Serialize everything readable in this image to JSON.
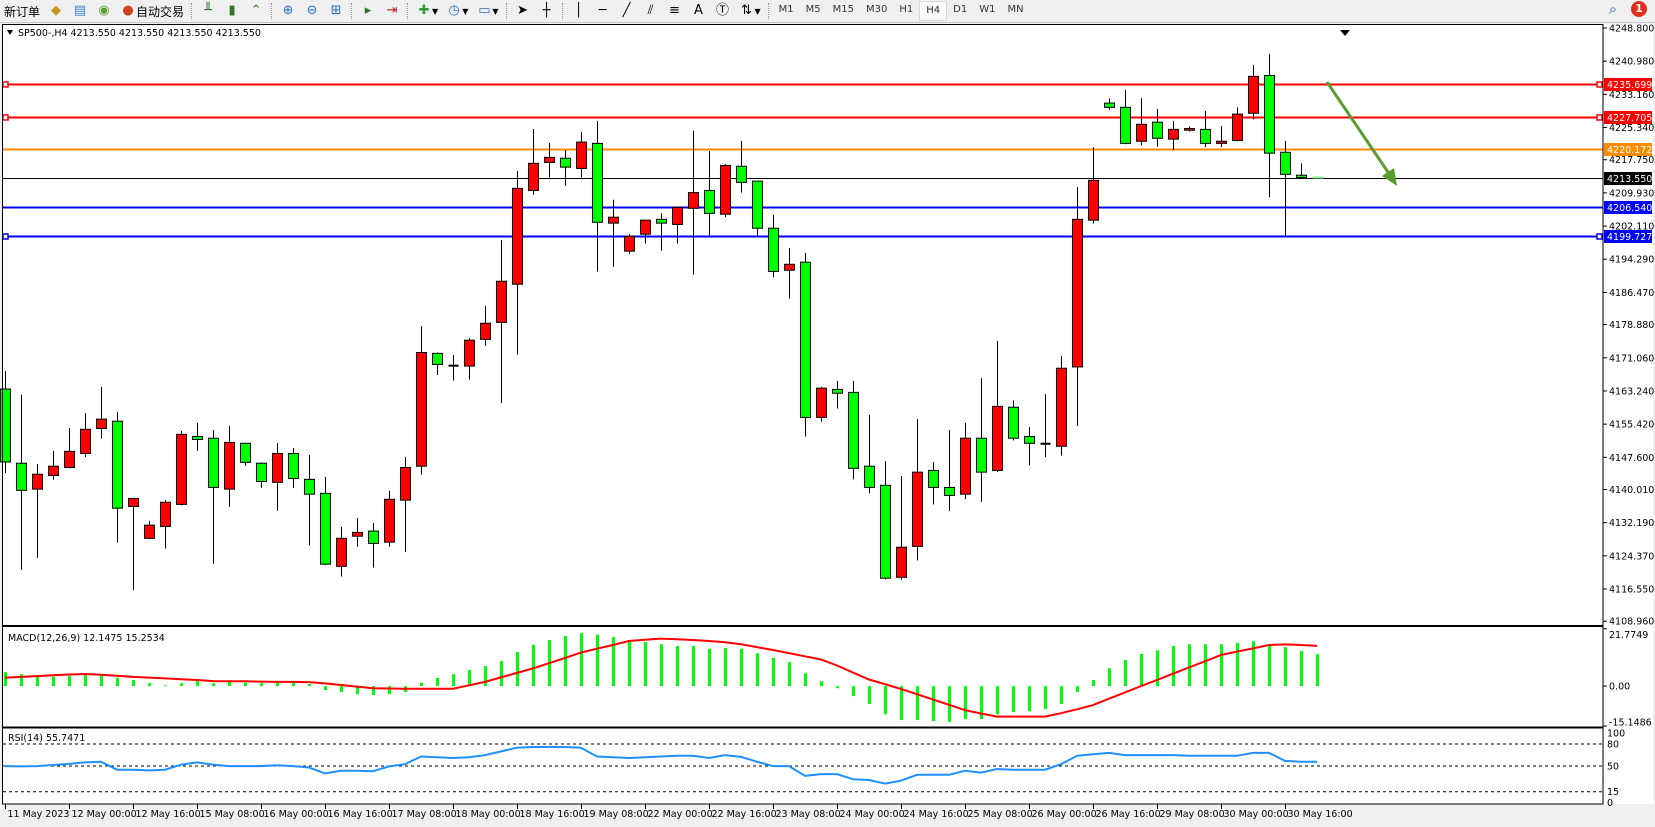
{
  "toolbar": {
    "new_order_label": "新订单",
    "auto_trading_label": "自动交易",
    "tools": [
      "bar-chart-icon",
      "candlestick-icon",
      "line-chart-icon",
      "zoom-in-icon",
      "zoom-out-icon",
      "tile-windows-icon",
      "auto-scroll-icon",
      "chart-shift-icon",
      "indicators-icon",
      "periods-icon",
      "templates-icon",
      "cursor-icon",
      "crosshair-icon",
      "vertical-line-icon",
      "horizontal-line-icon",
      "trendline-icon",
      "equidistant-channel-icon",
      "fibonacci-icon",
      "text-icon",
      "text-label-icon",
      "arrows-icon"
    ],
    "text_tool_label": "A",
    "timeframes": [
      "M1",
      "M5",
      "M15",
      "M30",
      "H1",
      "H4",
      "D1",
      "W1",
      "MN"
    ],
    "active_timeframe": "H4",
    "notification_count": "1"
  },
  "chart": {
    "header": "SP500-,H4  4213.550 4213.550 4213.550 4213.550",
    "bull_color": "#ff0000",
    "bear_color": "#00ff00",
    "current_bar_color": "#90ee90",
    "price_axis_labels": [
      "4248.800",
      "4240.980",
      "4233.160",
      "4225.340",
      "4217.750",
      "4209.930",
      "4202.110",
      "4194.290",
      "4186.470",
      "4178.880",
      "4171.060",
      "4163.240",
      "4155.420",
      "4147.600",
      "4140.010",
      "4132.190",
      "4124.370",
      "4116.550",
      "4108.960"
    ],
    "levels": [
      {
        "price": 4235.699,
        "label": "4235.699",
        "color": "#ff0000",
        "text_color": "#ffffff",
        "width": 2,
        "markers": true
      },
      {
        "price": 4227.705,
        "label": "4227.705",
        "color": "#ff0000",
        "text_color": "#ffffff",
        "width": 2,
        "markers": true
      },
      {
        "price": 4220.172,
        "label": "4220.172",
        "color": "#ff8c00",
        "text_color": "#ffffff",
        "width": 2,
        "markers": false
      },
      {
        "price": 4213.55,
        "label": "4213.550",
        "color": "#000000",
        "text_color": "#ffffff",
        "width": 1,
        "markers": false
      },
      {
        "price": 4206.54,
        "label": "4206.540",
        "color": "#0000ff",
        "text_color": "#ffffff",
        "width": 2,
        "markers": false
      },
      {
        "price": 4199.727,
        "label": "4199.727",
        "color": "#0000ff",
        "text_color": "#ffffff",
        "width": 2,
        "markers": true
      }
    ],
    "arrow_color": "#5a9e32",
    "date_labels": [
      "11 May 2023",
      "12 May 00:00",
      "12 May 16:00",
      "15 May 08:00",
      "16 May 00:00",
      "16 May 16:00",
      "17 May 08:00",
      "18 May 00:00",
      "18 May 16:00",
      "19 May 08:00",
      "22 May 00:00",
      "22 May 16:00",
      "23 May 08:00",
      "24 May 00:00",
      "24 May 16:00",
      "25 May 08:00",
      "26 May 00:00",
      "26 May 16:00",
      "29 May 08:00",
      "30 May 00:00",
      "30 May 16:00"
    ]
  },
  "chart_data": {
    "type": "candlestick",
    "symbol": "SP500-",
    "timeframe": "H4",
    "ylim": [
      4108.96,
      4248.8
    ],
    "ohlc": [
      [
        4163.7,
        4167.9,
        4143.9,
        4146.5
      ],
      [
        4146.2,
        4162.4,
        4121.1,
        4139.8
      ],
      [
        4140.1,
        4146.0,
        4123.9,
        4143.6
      ],
      [
        4143.3,
        4149.1,
        4142.3,
        4145.5
      ],
      [
        4145.2,
        4154.5,
        4145.0,
        4149.0
      ],
      [
        4148.5,
        4158.0,
        4147.7,
        4154.2
      ],
      [
        4154.4,
        4164.2,
        4152.0,
        4156.6
      ],
      [
        4156.1,
        4158.3,
        4127.5,
        4135.6
      ],
      [
        4136.0,
        4138.0,
        4116.3,
        4137.9
      ],
      [
        4128.5,
        4132.6,
        4128.3,
        4131.6
      ],
      [
        4131.3,
        4137.5,
        4126.1,
        4137.0
      ],
      [
        4136.5,
        4153.8,
        4136.3,
        4153.0
      ],
      [
        4152.5,
        4155.7,
        4149.1,
        4151.8
      ],
      [
        4152.1,
        4154.0,
        4122.5,
        4140.5
      ],
      [
        4140.1,
        4155.0,
        4135.9,
        4151.1
      ],
      [
        4150.9,
        4151.0,
        4145.6,
        4146.4
      ],
      [
        4146.2,
        4146.4,
        4140.4,
        4141.9
      ],
      [
        4141.7,
        4150.9,
        4135.0,
        4148.5
      ],
      [
        4148.5,
        4149.8,
        4140.4,
        4142.6
      ],
      [
        4142.4,
        4148.1,
        4126.8,
        4138.9
      ],
      [
        4139.1,
        4143.0,
        4122.2,
        4122.4
      ],
      [
        4121.9,
        4131.2,
        4119.5,
        4128.5
      ],
      [
        4129.0,
        4133.3,
        4126.5,
        4129.9
      ],
      [
        4130.2,
        4132.1,
        4121.6,
        4127.3
      ],
      [
        4127.6,
        4139.7,
        4126.5,
        4137.7
      ],
      [
        4137.5,
        4147.7,
        4125.3,
        4145.2
      ],
      [
        4145.5,
        4178.5,
        4143.5,
        4172.3
      ],
      [
        4172.1,
        4172.3,
        4167.0,
        4169.5
      ],
      [
        4169.2,
        4171.7,
        4165.7,
        4169.1
      ],
      [
        4169.1,
        4175.7,
        4165.9,
        4175.2
      ],
      [
        4175.4,
        4183.3,
        4173.9,
        4179.2
      ],
      [
        4179.4,
        4198.8,
        4160.4,
        4189.1
      ],
      [
        4188.4,
        4215.1,
        4171.8,
        4211.0
      ],
      [
        4210.5,
        4225.0,
        4209.5,
        4216.9
      ],
      [
        4217.1,
        4221.7,
        4213.6,
        4218.3
      ],
      [
        4218.1,
        4220.0,
        4211.6,
        4216.0
      ],
      [
        4215.7,
        4224.3,
        4213.6,
        4221.9
      ],
      [
        4221.6,
        4226.9,
        4191.4,
        4203.0
      ],
      [
        4202.8,
        4208.3,
        4192.5,
        4204.2
      ],
      [
        4196.2,
        4200.2,
        4195.6,
        4199.7
      ],
      [
        4200.2,
        4203.6,
        4198.0,
        4203.5
      ],
      [
        4203.7,
        4205.1,
        4196.3,
        4202.8
      ],
      [
        4202.5,
        4206.7,
        4198.0,
        4206.5
      ],
      [
        4206.3,
        4224.6,
        4190.7,
        4210.0
      ],
      [
        4210.5,
        4219.8,
        4199.9,
        4205.1
      ],
      [
        4204.9,
        4216.7,
        4204.2,
        4216.4
      ],
      [
        4216.2,
        4222.2,
        4210.0,
        4212.4
      ],
      [
        4212.7,
        4212.8,
        4199.5,
        4201.6
      ],
      [
        4201.6,
        4204.7,
        4190.0,
        4191.4
      ],
      [
        4191.7,
        4196.9,
        4185.0,
        4193.1
      ],
      [
        4193.6,
        4195.8,
        4152.5,
        4157.0
      ],
      [
        4157.0,
        4164.2,
        4156.0,
        4163.9
      ],
      [
        4163.6,
        4165.6,
        4159.1,
        4162.7
      ],
      [
        4162.9,
        4165.6,
        4142.4,
        4145.0
      ],
      [
        4145.5,
        4157.6,
        4139.1,
        4140.5
      ],
      [
        4141.0,
        4146.7,
        4118.8,
        4119.1
      ],
      [
        4119.3,
        4143.2,
        4118.8,
        4126.4
      ],
      [
        4126.6,
        4156.6,
        4123.3,
        4144.1
      ],
      [
        4144.5,
        4146.5,
        4136.5,
        4140.5
      ],
      [
        4140.5,
        4154.0,
        4134.9,
        4138.6
      ],
      [
        4138.9,
        4155.7,
        4137.7,
        4152.1
      ],
      [
        4152.1,
        4166.3,
        4137.1,
        4144.1
      ],
      [
        4144.5,
        4175.0,
        4144.1,
        4159.6
      ],
      [
        4159.4,
        4161.0,
        4151.6,
        4152.1
      ],
      [
        4152.5,
        4154.7,
        4145.7,
        4150.9
      ],
      [
        4150.8,
        4162.5,
        4147.6,
        4150.6
      ],
      [
        4150.2,
        4171.5,
        4148.0,
        4168.6
      ],
      [
        4168.9,
        4211.3,
        4155.0,
        4203.7
      ],
      [
        4203.5,
        4220.7,
        4202.7,
        4212.9
      ],
      [
        4231.1,
        4232.2,
        4229.6,
        4230.1
      ],
      [
        4230.1,
        4234.2,
        4221.4,
        4221.6
      ],
      [
        4222.1,
        4232.3,
        4221.1,
        4226.1
      ],
      [
        4226.6,
        4229.7,
        4220.8,
        4222.8
      ],
      [
        4222.6,
        4226.9,
        4220.0,
        4224.9
      ],
      [
        4224.7,
        4225.6,
        4224.4,
        4225.1
      ],
      [
        4224.9,
        4229.2,
        4220.7,
        4221.6
      ],
      [
        4221.6,
        4225.7,
        4220.7,
        4222.1
      ],
      [
        4222.3,
        4230.1,
        4222.1,
        4228.5
      ],
      [
        4228.7,
        4240.1,
        4227.3,
        4237.4
      ],
      [
        4237.6,
        4242.7,
        4208.9,
        4219.3
      ],
      [
        4219.5,
        4222.2,
        4199.7,
        4214.3
      ],
      [
        4214.1,
        4216.9,
        4213.5,
        4213.55
      ],
      [
        4213.55,
        4213.55,
        4213.55,
        4213.55
      ]
    ],
    "macd": {
      "label": "MACD(12,26,9) 12.1475 15.2534",
      "ylim": [
        -15.1486,
        21.7749
      ],
      "axis_labels": [
        "21.7749",
        "0.00",
        "-15.1486"
      ],
      "histogram_color": "#00ff00",
      "signal_color": "#ff0000",
      "main": [
        5.3,
        4.5,
        4.2,
        3.6,
        3.8,
        4.4,
        4.2,
        3.2,
        2.3,
        1.1,
        0.3,
        1.1,
        2.0,
        1.1,
        1.8,
        1.3,
        1.1,
        1.3,
        1.4,
        0.8,
        -1.5,
        -2.3,
        -3.1,
        -3.4,
        -3.1,
        -2.3,
        1.3,
        3.1,
        4.5,
        6.1,
        7.6,
        9.5,
        12.9,
        15.7,
        17.5,
        19.0,
        20.1,
        19.5,
        18.6,
        17.5,
        16.7,
        15.9,
        15.2,
        15.2,
        14.1,
        14.4,
        14.1,
        12.5,
        10.7,
        9.1,
        4.9,
        1.9,
        -0.8,
        -3.8,
        -6.8,
        -10.7,
        -12.9,
        -12.9,
        -13.3,
        -13.6,
        -12.5,
        -12.5,
        -10.7,
        -9.9,
        -9.5,
        -8.7,
        -6.8,
        -2.3,
        2.3,
        6.8,
        9.9,
        12.2,
        13.6,
        15.2,
        15.9,
        15.9,
        15.9,
        16.4,
        17.0,
        15.9,
        14.8,
        13.3,
        12.1475
      ],
      "signal": [
        3.2,
        3.5,
        3.8,
        4.1,
        4.4,
        4.6,
        4.3,
        3.9,
        3.5,
        3.2,
        2.9,
        2.6,
        2.3,
        1.9,
        1.8,
        1.8,
        1.7,
        1.6,
        1.6,
        1.5,
        1.0,
        0.4,
        -0.2,
        -0.8,
        -0.9,
        -1.0,
        -1.0,
        -1.0,
        -1.0,
        0.3,
        1.6,
        3.3,
        5.0,
        6.7,
        8.7,
        10.7,
        12.7,
        14.2,
        15.6,
        17.1,
        17.6,
        18.0,
        17.8,
        17.5,
        17.1,
        16.6,
        15.9,
        14.8,
        13.7,
        12.5,
        11.3,
        10.1,
        7.8,
        5.1,
        2.5,
        0.7,
        -1.1,
        -3.1,
        -5.1,
        -7.1,
        -9.1,
        -10.4,
        -11.6,
        -11.6,
        -11.6,
        -11.6,
        -10.3,
        -8.8,
        -7.2,
        -4.8,
        -2.4,
        0.0,
        2.3,
        4.7,
        7.1,
        9.4,
        11.8,
        13.1,
        14.3,
        15.6,
        15.8,
        15.6,
        15.2534
      ]
    },
    "rsi": {
      "label": "RSI(14) 55.7471",
      "ylim": [
        0,
        100
      ],
      "levels": [
        80,
        50,
        15
      ],
      "axis_labels": [
        "100",
        "80",
        "50",
        "15",
        "0"
      ],
      "line_color": "#1e90ff",
      "values": [
        50,
        49.5,
        50,
        51.5,
        53,
        55,
        56,
        45,
        45,
        44,
        45,
        52,
        55,
        52,
        50,
        50,
        50,
        51,
        50,
        48,
        40,
        43.5,
        43.5,
        43,
        49.5,
        52.5,
        63,
        62,
        61,
        62,
        65,
        70,
        75,
        76,
        76,
        76,
        75,
        63,
        62,
        61,
        62,
        63,
        64,
        64,
        61,
        65,
        62.5,
        56,
        50,
        50,
        36.5,
        39,
        39,
        32,
        31,
        26,
        30,
        38,
        38,
        38,
        43.5,
        41,
        46,
        45,
        45,
        45,
        52.5,
        64,
        66,
        68,
        65,
        65,
        65,
        65,
        64,
        64,
        64,
        64,
        68,
        68,
        57,
        56,
        55.7471
      ]
    }
  }
}
